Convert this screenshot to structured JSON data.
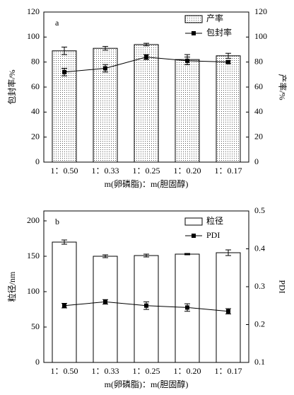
{
  "chart_data": [
    {
      "type": "bar_line",
      "panel_label": "a",
      "categories": [
        "1：0.50",
        "1：0.33",
        "1：0.25",
        "1：0.20",
        "1：0.17"
      ],
      "x_label": "m(卵磷脂)：m(胆固醇)",
      "y_label": "包封率/%",
      "y2_label": "产率/%",
      "ylim": [
        0,
        120
      ],
      "yticks": [
        0,
        20,
        40,
        60,
        80,
        100,
        120
      ],
      "y2lim": [
        0,
        120
      ],
      "y2ticks": [
        0,
        20,
        40,
        60,
        80,
        100,
        120
      ],
      "series": [
        {
          "name": "产率",
          "type": "bar",
          "axis": "y2",
          "color": "#000000",
          "fill": "dotted",
          "values": [
            89,
            91,
            94,
            82,
            85
          ],
          "errors": [
            3,
            1.5,
            1,
            4,
            2
          ]
        },
        {
          "name": "包封率",
          "type": "line",
          "color": "#000000",
          "values": [
            72,
            75,
            84,
            81,
            80
          ],
          "errors": [
            3,
            3,
            2,
            3,
            1
          ]
        }
      ]
    },
    {
      "type": "bar_line",
      "panel_label": "b",
      "categories": [
        "1：0.50",
        "1：0.33",
        "1：0.25",
        "1：0.20",
        "1：0.17"
      ],
      "x_label": "m(卵磷脂)：m(胆固醇)",
      "y_label": "粒径/nm",
      "y2_label": "PDI",
      "ylim": [
        0,
        214
      ],
      "yticks": [
        0,
        50,
        100,
        150,
        200
      ],
      "y2lim": [
        0.1,
        0.5
      ],
      "y2ticks": [
        0.1,
        0.2,
        0.3,
        0.4,
        0.5
      ],
      "series": [
        {
          "name": "粒径",
          "type": "bar",
          "color": "#000000",
          "fill": "white",
          "values": [
            170,
            150,
            151,
            153,
            155
          ],
          "errors": [
            3,
            2,
            2,
            1,
            4
          ]
        },
        {
          "name": "PDI",
          "type": "line",
          "axis": "y2",
          "color": "#000000",
          "values": [
            0.25,
            0.26,
            0.25,
            0.245,
            0.235
          ],
          "errors": [
            0.006,
            0.006,
            0.01,
            0.01,
            0.007
          ]
        }
      ]
    }
  ]
}
